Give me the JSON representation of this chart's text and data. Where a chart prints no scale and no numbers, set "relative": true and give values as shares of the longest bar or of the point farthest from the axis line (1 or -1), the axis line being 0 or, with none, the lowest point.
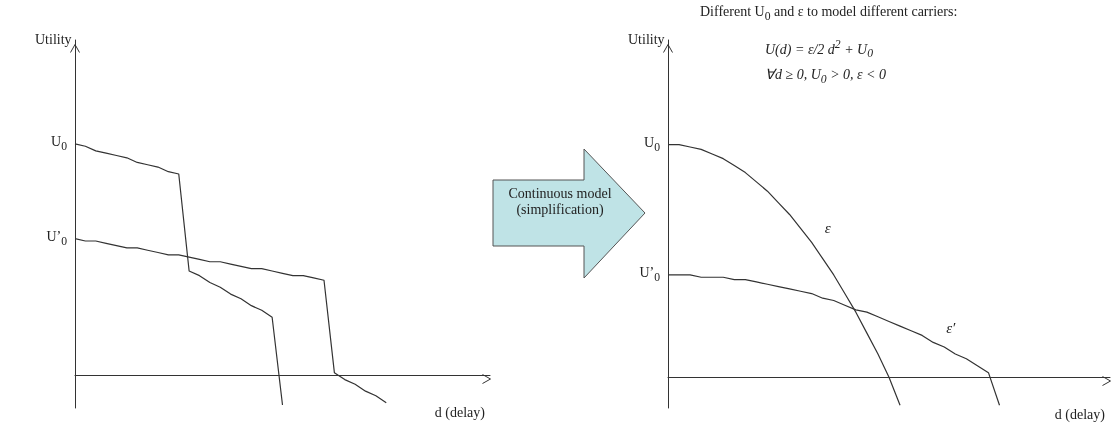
{
  "chart_data": [
    {
      "type": "line",
      "relative": true,
      "ylabel": "Utility",
      "xlabel": "d (delay)",
      "marker": "none",
      "line_style": "solid",
      "categories": [
        null,
        null,
        null,
        null,
        null,
        null,
        null,
        null,
        null,
        null,
        null,
        null,
        null,
        null,
        null,
        null,
        null,
        null,
        null,
        null,
        null,
        null,
        null,
        null,
        null,
        null,
        null,
        null,
        null,
        null,
        null,
        null,
        null,
        null,
        null,
        null,
        null,
        null,
        null,
        null,
        null
      ],
      "series": [
        {
          "color": "#333333",
          "values": [
            1,
            0.99,
            0.97,
            0.96,
            0.95,
            0.94,
            0.92,
            0.91,
            0.9,
            0.88,
            0.87,
            0.45,
            0.43,
            0.4,
            0.38,
            0.35,
            0.33,
            0.3,
            0.28,
            0.25,
            -0.13,
            null,
            null,
            null,
            null,
            null,
            null,
            null,
            null,
            null,
            null,
            null,
            null,
            null,
            null,
            null,
            null,
            null,
            null,
            null,
            null
          ]
        },
        {
          "color": "#333333",
          "values": [
            0.59,
            0.58,
            0.58,
            0.57,
            0.56,
            0.55,
            0.55,
            0.54,
            0.53,
            0.52,
            0.52,
            0.51,
            0.5,
            0.49,
            0.49,
            0.48,
            0.47,
            0.46,
            0.46,
            0.45,
            0.44,
            0.43,
            0.43,
            0.42,
            0.41,
            0.01,
            -0.02,
            -0.04,
            -0.07,
            -0.09,
            -0.12,
            null,
            null,
            null,
            null,
            null,
            null,
            null,
            null,
            null,
            null
          ]
        }
      ],
      "annotations": [
        "U$_{0}$",
        "U’$_{0}$",
        "Continuous model (simplification)"
      ]
    },
    {
      "type": "line",
      "relative": true,
      "ylabel": "Utility",
      "xlabel": "d (delay)",
      "marker": "none",
      "line_style": "solid",
      "categories": [
        null,
        null,
        null,
        null,
        null,
        null,
        null,
        null,
        null,
        null,
        null,
        null,
        null,
        null,
        null,
        null,
        null,
        null,
        null,
        null,
        null,
        null,
        null,
        null,
        null,
        null,
        null,
        null,
        null,
        null,
        null,
        null,
        null,
        null,
        null,
        null,
        null,
        null,
        null,
        null,
        null
      ],
      "series": [
        {
          "name": "ε",
          "color": "#333333",
          "values": [
            1,
            1,
            0.99,
            0.98,
            0.96,
            0.94,
            0.91,
            0.88,
            0.84,
            0.8,
            0.75,
            0.7,
            0.64,
            0.58,
            0.51,
            0.44,
            0.36,
            0.28,
            0.19,
            0.1,
            0,
            -0.12,
            null,
            null,
            null,
            null,
            null,
            null,
            null,
            null,
            null,
            null,
            null,
            null,
            null,
            null,
            null,
            null,
            null,
            null,
            null
          ]
        },
        {
          "name": "ε′",
          "color": "#333333",
          "values": [
            0.44,
            0.44,
            0.44,
            0.43,
            0.43,
            0.43,
            0.42,
            0.42,
            0.41,
            0.4,
            0.39,
            0.38,
            0.37,
            0.36,
            0.34,
            0.33,
            0.31,
            0.29,
            0.28,
            0.26,
            0.24,
            0.22,
            0.2,
            0.18,
            0.15,
            0.13,
            0.1,
            0.08,
            0.05,
            0.02,
            -0.12,
            null,
            null,
            null,
            null,
            null,
            null,
            null,
            null,
            null,
            null
          ]
        }
      ],
      "annotations": [
        "U$_{0}$",
        "U’$_{0}$",
        "Different U$_{0}$ and ε to model different carriers:",
        "U(d) = ε/2 d$^{2}$ + U$_{0}$",
        "∀d ≥ 0, U$_{0}$ > 0, ε < 0"
      ]
    }
  ]
}
